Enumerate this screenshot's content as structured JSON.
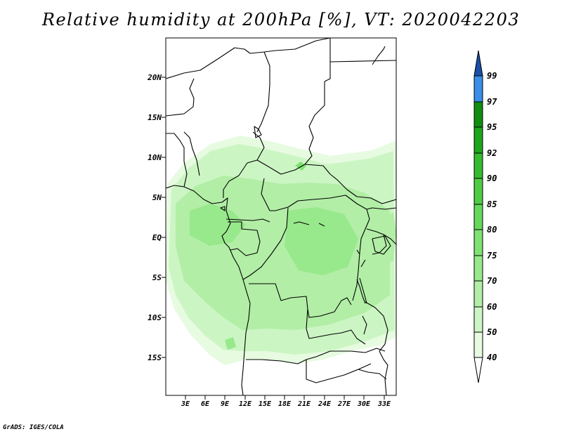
{
  "title": "Relative humidity at 200hPa [%], VT: 2020042203",
  "credit": "GrADS: IGES/COLA",
  "map": {
    "lat_labels": [
      "20N",
      "15N",
      "10N",
      "5N",
      "EQ",
      "5S",
      "10S",
      "15S"
    ],
    "lon_labels": [
      "3E",
      "6E",
      "9E",
      "12E",
      "15E",
      "18E",
      "21E",
      "24E",
      "27E",
      "30E",
      "33E"
    ]
  },
  "colorbar": {
    "levels": [
      "40",
      "50",
      "60",
      "70",
      "75",
      "80",
      "85",
      "90",
      "92",
      "95",
      "97",
      "99"
    ],
    "colors": [
      "#e6fbe0",
      "#ccf5c4",
      "#b2eea6",
      "#98e88c",
      "#7fe172",
      "#66d85a",
      "#4fcc44",
      "#35bb30",
      "#1fa51c",
      "#118d12",
      "#3a8ee8",
      "#2868cc",
      "#1a4fa8"
    ],
    "under_color": "#ffffff"
  }
}
